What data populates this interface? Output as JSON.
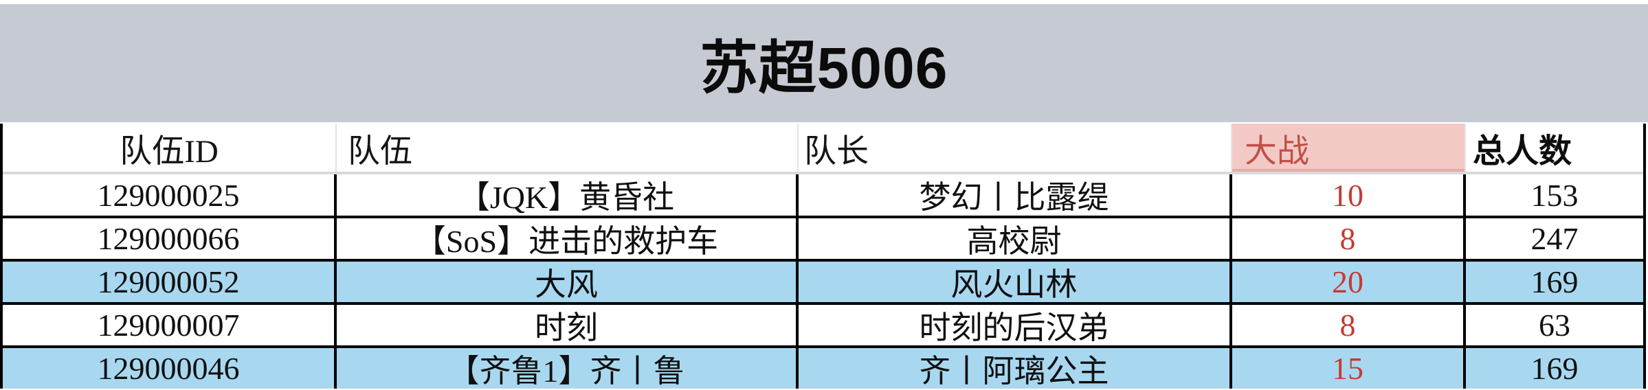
{
  "page_title": "苏超5006",
  "chart_data": {
    "type": "table",
    "title": "苏超5006",
    "columns": [
      "队伍ID",
      "队伍",
      "队长",
      "大战",
      "总人数"
    ],
    "rows": [
      {
        "id": "129000025",
        "team": "【JQK】黄昏社",
        "captain": "梦幻丨比露缇",
        "war": "10",
        "total": "153",
        "highlighted": false
      },
      {
        "id": "129000066",
        "team": "【SoS】进击的救护车",
        "captain": "高校尉",
        "war": "8",
        "total": "247",
        "highlighted": false
      },
      {
        "id": "129000052",
        "team": "大风",
        "captain": "风火山林",
        "war": "20",
        "total": "169",
        "highlighted": true
      },
      {
        "id": "129000007",
        "team": "时刻",
        "captain": "时刻的后汉弟",
        "war": "8",
        "total": "63",
        "highlighted": false
      },
      {
        "id": "129000046",
        "team": "【齐鲁1】齐丨鲁",
        "captain": "齐丨阿璃公主",
        "war": "15",
        "total": "169",
        "highlighted": true
      }
    ],
    "legend_position": "none",
    "grid": "on",
    "highlighted_row_indices": [
      2,
      4
    ]
  },
  "colors": {
    "title_band_bg": "#c6cad2",
    "title_text": "#0b0b0b",
    "table_border": "#000000",
    "header_divider": "#d9d9d9",
    "row_highlight_bg": "#a8d8f0",
    "war_header_bg": "#f3c9c5",
    "war_header_text": "#c05048",
    "war_value_text": "#c43b32"
  }
}
